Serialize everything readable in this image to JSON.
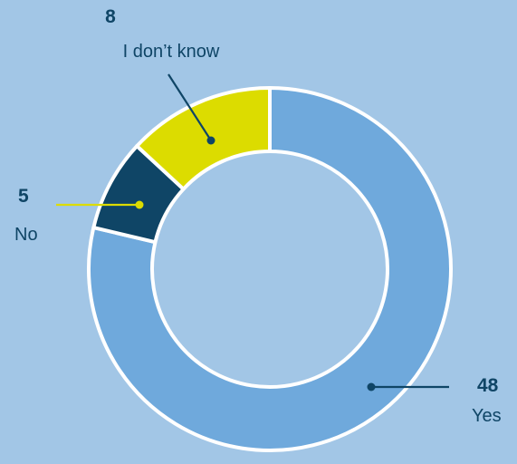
{
  "chart_data": {
    "type": "pie",
    "donut": true,
    "slices": [
      {
        "label": "Yes",
        "value": 48,
        "color": "#6fa9dc"
      },
      {
        "label": "No",
        "value": 5,
        "color": "#0f4566"
      },
      {
        "label": "I don’t know",
        "value": 8,
        "color": "#dcdc00"
      }
    ],
    "background_color": "#a2c6e6",
    "stroke_color": "#ffffff",
    "text_color": "#0f4566"
  }
}
